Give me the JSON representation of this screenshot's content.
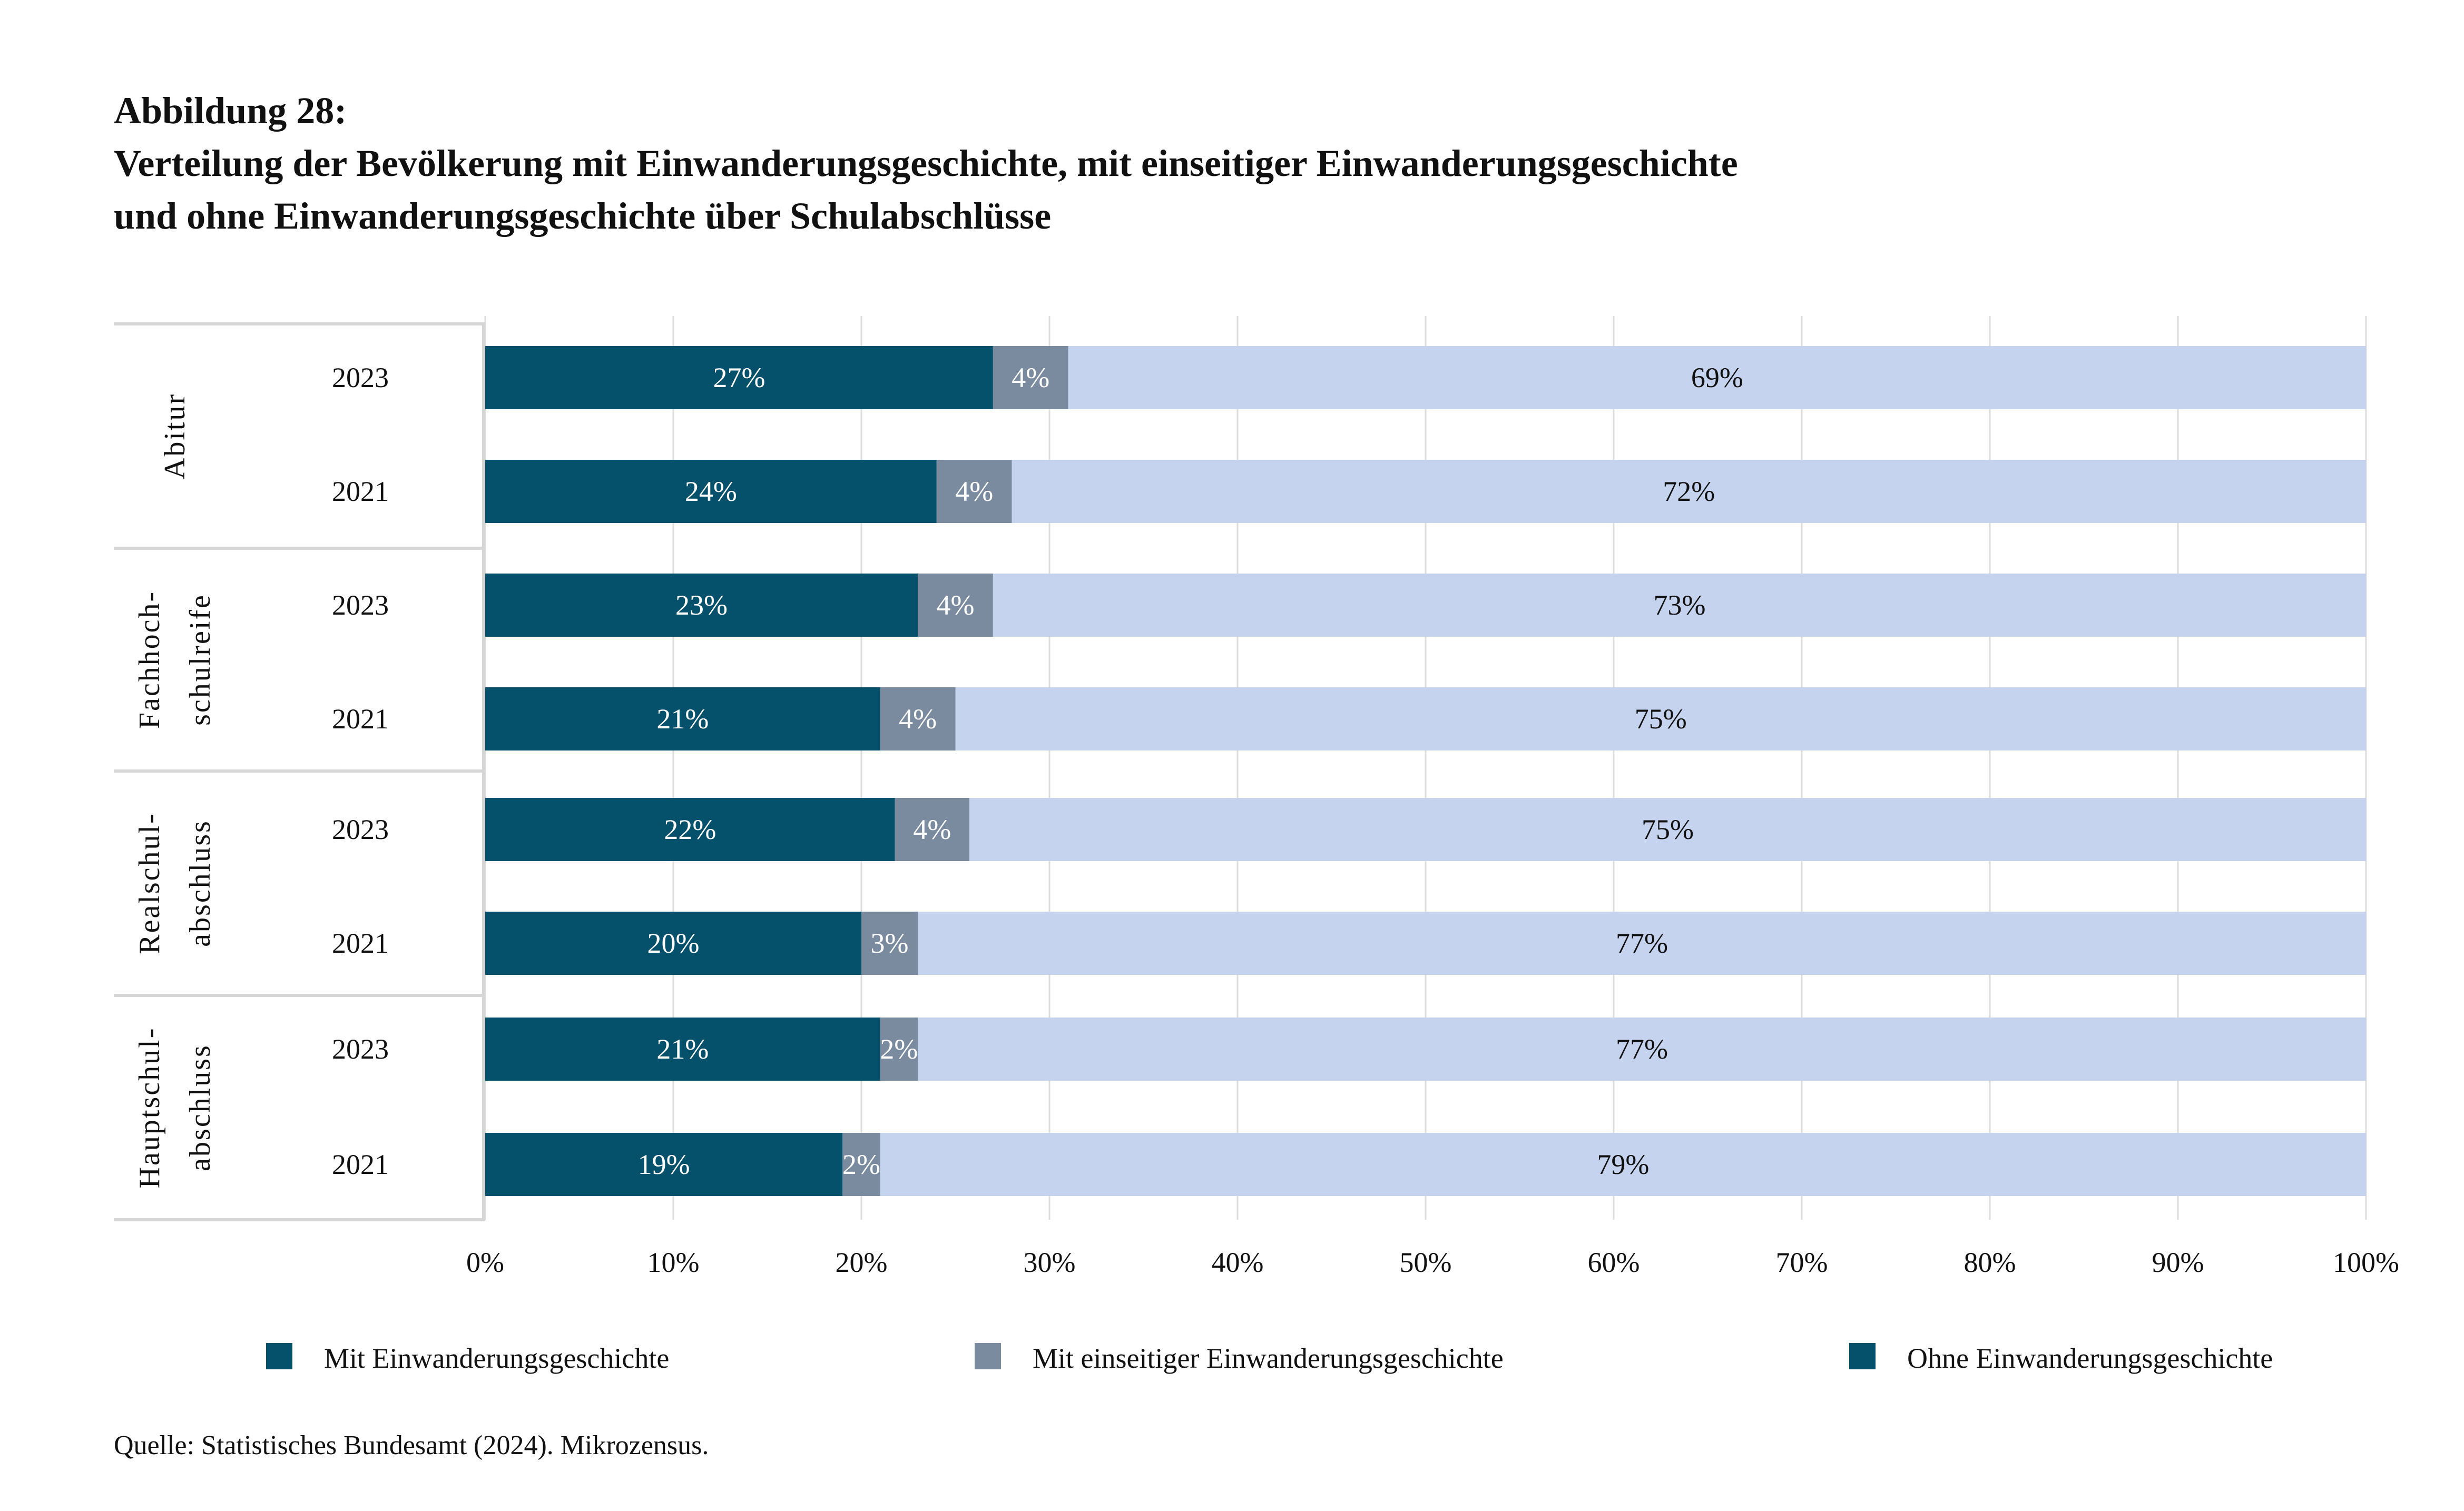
{
  "header": {
    "figure_label": "Abbildung 28:",
    "title_line1": "Verteilung der Bevölkerung mit Einwanderungsgeschichte, mit einseitiger Einwanderungsgeschichte",
    "title_line2": "und ohne Einwanderungsgeschichte über Schulabschlüsse"
  },
  "source": "Quelle: Statistisches Bundesamt (2024). Mikrozensus.",
  "chart_data": {
    "type": "bar",
    "orientation": "horizontal",
    "stacked": true,
    "xlim": [
      0,
      100
    ],
    "x_ticks": [
      "0%",
      "10%",
      "20%",
      "30%",
      "40%",
      "50%",
      "60%",
      "70%",
      "80%",
      "90%",
      "100%"
    ],
    "grid": "vertical",
    "legend_position": "bottom",
    "groups": [
      {
        "label": [
          "Abitur"
        ],
        "rows": [
          {
            "year": "2023",
            "values": [
              27,
              4,
              69
            ]
          },
          {
            "year": "2021",
            "values": [
              24,
              4,
              72
            ]
          }
        ]
      },
      {
        "label": [
          "Fachhoch-",
          "schulreife"
        ],
        "rows": [
          {
            "year": "2023",
            "values": [
              23,
              4,
              73
            ]
          },
          {
            "year": "2021",
            "values": [
              21,
              4,
              75
            ]
          }
        ]
      },
      {
        "label": [
          "Realschul-",
          "abschluss"
        ],
        "rows": [
          {
            "year": "2023",
            "values": [
              22,
              4,
              75
            ]
          },
          {
            "year": "2021",
            "values": [
              20,
              3,
              77
            ]
          }
        ]
      },
      {
        "label": [
          "Hauptschul-",
          "abschluss"
        ],
        "rows": [
          {
            "year": "2023",
            "values": [
              21,
              2,
              77
            ]
          },
          {
            "year": "2021",
            "values": [
              19,
              2,
              79
            ]
          }
        ]
      }
    ],
    "series": [
      {
        "name": "Mit Einwanderungsgeschichte",
        "color": "#05506a",
        "legend_color": "#05506a",
        "label_color": "#ffffff"
      },
      {
        "name": "Mit einseitiger Einwanderungsgeschichte",
        "color": "#7a8ba0",
        "legend_color": "#7a8ba0",
        "label_color": "#ffffff"
      },
      {
        "name": "Ohne Einwanderungsgeschichte",
        "color": "#c5d3ef",
        "legend_color": "#05506a",
        "label_color": "#111111"
      }
    ],
    "value_suffix": "%"
  }
}
